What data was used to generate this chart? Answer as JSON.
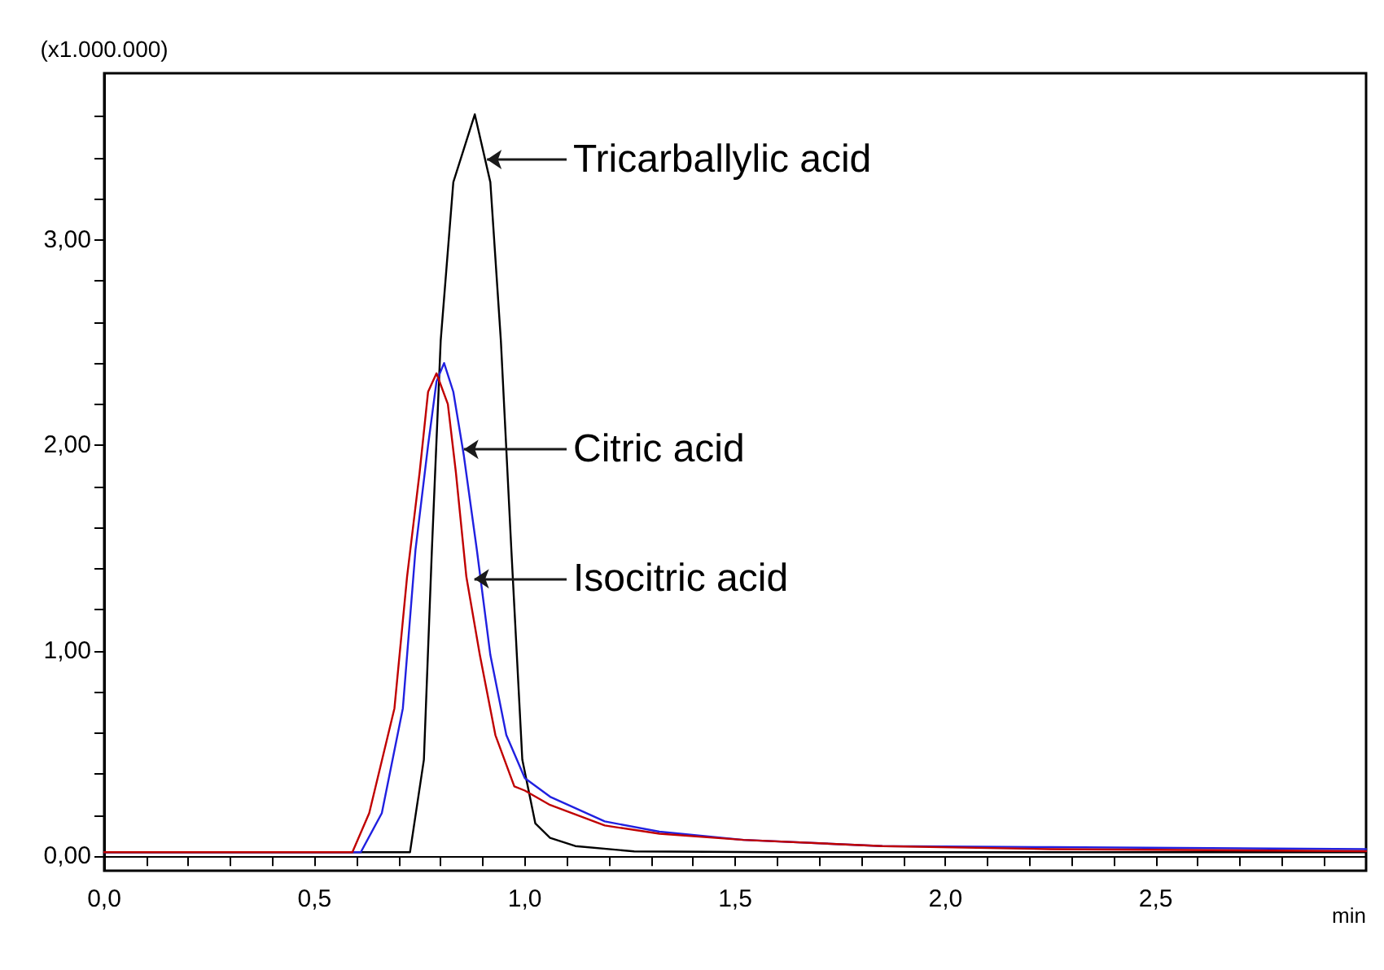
{
  "chart_data": {
    "type": "line",
    "xlabel": "min",
    "ylabel": "(x1.000.000)",
    "xlim": [
      0,
      3.0
    ],
    "ylim": [
      -0.07,
      3.81
    ],
    "xticks": [
      {
        "value": 0,
        "label": "0,0"
      },
      {
        "value": 0.1,
        "label": null
      },
      {
        "value": 0.2,
        "label": null
      },
      {
        "value": 0.3,
        "label": null
      },
      {
        "value": 0.4,
        "label": null
      },
      {
        "value": 0.5,
        "label": "0,5"
      },
      {
        "value": 0.6,
        "label": null
      },
      {
        "value": 0.7,
        "label": null
      },
      {
        "value": 0.8,
        "label": null
      },
      {
        "value": 0.9,
        "label": null
      },
      {
        "value": 1.0,
        "label": "1,0"
      },
      {
        "value": 1.1,
        "label": null
      },
      {
        "value": 1.2,
        "label": null
      },
      {
        "value": 1.3,
        "label": null
      },
      {
        "value": 1.4,
        "label": null
      },
      {
        "value": 1.5,
        "label": "1,5"
      },
      {
        "value": 1.6,
        "label": null
      },
      {
        "value": 1.7,
        "label": null
      },
      {
        "value": 1.8,
        "label": null
      },
      {
        "value": 1.9,
        "label": null
      },
      {
        "value": 2.0,
        "label": "2,0"
      },
      {
        "value": 2.1,
        "label": null
      },
      {
        "value": 2.2,
        "label": null
      },
      {
        "value": 2.3,
        "label": null
      },
      {
        "value": 2.4,
        "label": null
      },
      {
        "value": 2.5,
        "label": "2,5"
      },
      {
        "value": 2.6,
        "label": null
      },
      {
        "value": 2.7,
        "label": null
      },
      {
        "value": 2.8,
        "label": null
      },
      {
        "value": 2.9,
        "label": null
      }
    ],
    "yticks": [
      {
        "value": 0,
        "label": "0,00"
      },
      {
        "value": 0.2,
        "label": null
      },
      {
        "value": 0.4,
        "label": null
      },
      {
        "value": 0.6,
        "label": null
      },
      {
        "value": 0.8,
        "label": null
      },
      {
        "value": 1.0,
        "label": "1,00"
      },
      {
        "value": 1.2,
        "label": null
      },
      {
        "value": 1.4,
        "label": null
      },
      {
        "value": 1.6,
        "label": null
      },
      {
        "value": 1.8,
        "label": null
      },
      {
        "value": 2.0,
        "label": "2,00"
      },
      {
        "value": 2.2,
        "label": null
      },
      {
        "value": 2.4,
        "label": null
      },
      {
        "value": 2.6,
        "label": null
      },
      {
        "value": 2.8,
        "label": null
      },
      {
        "value": 3.0,
        "label": "3,00"
      },
      {
        "value": 3.2,
        "label": null
      },
      {
        "value": 3.4,
        "label": null
      },
      {
        "value": 3.6,
        "label": null
      }
    ],
    "marker": "none",
    "line_style": "solid",
    "series": [
      {
        "color": "#000000",
        "x": [
          0,
          0.3,
          0.6,
          0.727,
          0.76,
          0.779,
          0.8,
          0.83,
          0.881,
          0.918,
          0.943,
          0.968,
          0.994,
          1.025,
          1.06,
          1.12,
          1.26,
          1.6,
          2.2,
          3.0
        ],
        "values": [
          0.02,
          0.02,
          0.02,
          0.02,
          0.47,
          1.49,
          2.51,
          3.28,
          3.61,
          3.28,
          2.51,
          1.49,
          0.47,
          0.16,
          0.09,
          0.05,
          0.024,
          0.02,
          0.02,
          0.02
        ]
      },
      {
        "color": "#2020e0",
        "x": [
          0,
          0.3,
          0.61,
          0.66,
          0.71,
          0.74,
          0.77,
          0.79,
          0.808,
          0.83,
          0.855,
          0.886,
          0.918,
          0.956,
          1.0,
          1.06,
          1.19,
          1.32,
          1.52,
          1.85,
          2.25,
          3.0
        ],
        "values": [
          0.02,
          0.02,
          0.02,
          0.21,
          0.72,
          1.49,
          2.0,
          2.31,
          2.4,
          2.26,
          1.95,
          1.49,
          0.98,
          0.59,
          0.38,
          0.29,
          0.17,
          0.12,
          0.08,
          0.05,
          0.045,
          0.035
        ]
      },
      {
        "color": "#c00000",
        "x": [
          0,
          0.3,
          0.59,
          0.63,
          0.69,
          0.72,
          0.75,
          0.77,
          0.79,
          0.817,
          0.836,
          0.861,
          0.893,
          0.93,
          0.975,
          1.0,
          1.06,
          1.19,
          1.32,
          1.52,
          1.85,
          2.25,
          3.0
        ],
        "values": [
          0.02,
          0.02,
          0.02,
          0.21,
          0.72,
          1.36,
          1.87,
          2.26,
          2.35,
          2.2,
          1.87,
          1.36,
          0.98,
          0.59,
          0.34,
          0.32,
          0.25,
          0.15,
          0.11,
          0.08,
          0.05,
          0.035,
          0.025
        ]
      }
    ],
    "annotations": [
      {
        "text": "Tricarballylic acid",
        "x": 0.91,
        "y": 3.39
      },
      {
        "text": "Citric acid",
        "x": 0.855,
        "y": 1.98
      },
      {
        "text": "Isocitric acid",
        "x": 0.88,
        "y": 1.35
      }
    ]
  }
}
